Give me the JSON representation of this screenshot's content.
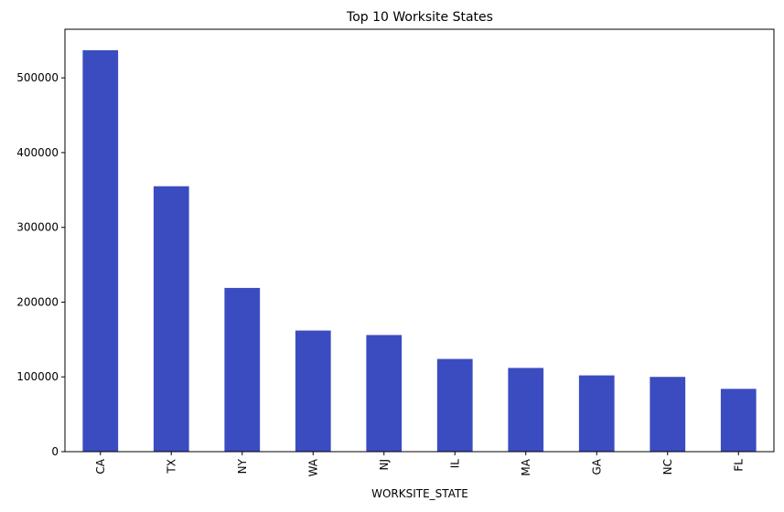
{
  "chart_data": {
    "type": "bar",
    "title": "Top 10 Worksite States",
    "xlabel": "WORKSITE_STATE",
    "ylabel": "",
    "categories": [
      "CA",
      "TX",
      "NY",
      "WA",
      "NJ",
      "IL",
      "MA",
      "GA",
      "NC",
      "FL"
    ],
    "values": [
      537000,
      355000,
      219000,
      162000,
      156000,
      124000,
      112000,
      102000,
      100000,
      84000
    ],
    "ylim": [
      0,
      565000
    ],
    "yticks": [
      0,
      100000,
      200000,
      300000,
      400000,
      500000
    ],
    "ytick_labels": [
      "0",
      "100000",
      "200000",
      "300000",
      "400000",
      "500000"
    ],
    "bar_color": "#3b4cc0",
    "grid": false,
    "legend": "none"
  }
}
